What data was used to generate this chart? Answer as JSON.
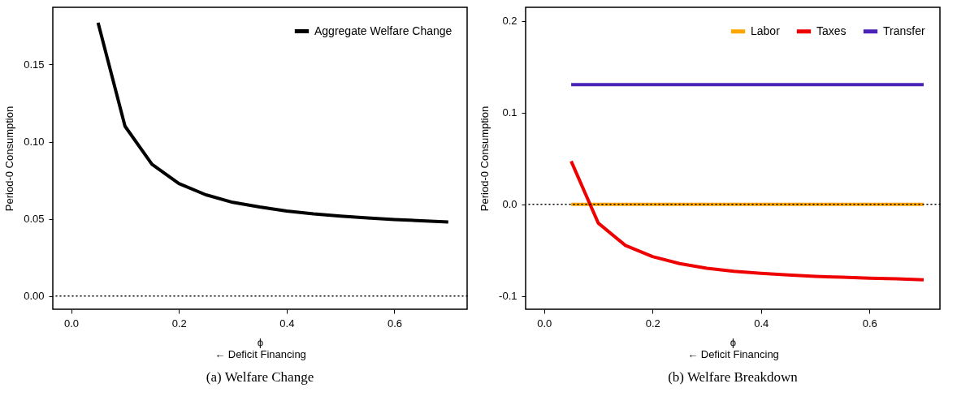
{
  "chart_data": [
    {
      "type": "line",
      "title": "(a) Welfare Change",
      "xlabel": "ϕ\n← Deficit Financing",
      "ylabel": "Period-0 Consumption",
      "x": [
        0.05,
        0.1,
        0.15,
        0.2,
        0.25,
        0.3,
        0.35,
        0.4,
        0.45,
        0.5,
        0.55,
        0.6,
        0.65,
        0.7
      ],
      "series": [
        {
          "name": "Aggregate Welfare Change",
          "color": "#000000",
          "values": [
            0.177,
            0.11,
            0.0854,
            0.0729,
            0.0656,
            0.0607,
            0.0577,
            0.0551,
            0.0532,
            0.0518,
            0.0506,
            0.0496,
            0.0488,
            0.048
          ]
        }
      ],
      "xlim": [
        -0.034,
        0.735
      ],
      "ylim": [
        -0.0085,
        0.187
      ],
      "xticks": [
        {
          "value": 0,
          "label": "0.0"
        },
        {
          "value": 0.2,
          "label": "0.2"
        },
        {
          "value": 0.4,
          "label": "0.4"
        },
        {
          "value": 0.6,
          "label": "0.6"
        }
      ],
      "yticks": [
        {
          "value": 0,
          "label": "0.00"
        },
        {
          "value": 0.05,
          "label": "0.05"
        },
        {
          "value": 0.1,
          "label": "0.10"
        },
        {
          "value": 0.15,
          "label": "0.15"
        }
      ],
      "ref_lines": [
        {
          "axis": "y",
          "value": 0,
          "color": "#000000",
          "line_style": "dotted"
        }
      ],
      "legend": "top right",
      "line_style": "solid"
    },
    {
      "type": "line",
      "title": "(b) Welfare Breakdown",
      "xlabel": "ϕ\n← Deficit Financing",
      "ylabel": "Period-0 Consumption",
      "x": [
        0.05,
        0.1,
        0.15,
        0.2,
        0.25,
        0.3,
        0.35,
        0.4,
        0.45,
        0.5,
        0.55,
        0.6,
        0.65,
        0.7
      ],
      "series": [
        {
          "name": "Labor",
          "color": "#ffa500",
          "values": [
            0,
            0,
            0,
            0,
            0,
            0,
            0,
            0,
            0,
            0,
            0,
            0,
            0,
            0
          ]
        },
        {
          "name": "Taxes",
          "color": "#ee0000",
          "values": [
            0.047,
            -0.0206,
            -0.0449,
            -0.0571,
            -0.0648,
            -0.0698,
            -0.0731,
            -0.0754,
            -0.0771,
            -0.0787,
            -0.0797,
            -0.0807,
            -0.0814,
            -0.0824
          ]
        },
        {
          "name": "Transfer",
          "color": "#4a22b8",
          "values": [
            0.1306,
            0.1306,
            0.1306,
            0.1306,
            0.1306,
            0.1306,
            0.1306,
            0.1306,
            0.1306,
            0.1306,
            0.1306,
            0.1306,
            0.1306,
            0.1306
          ]
        }
      ],
      "xlim": [
        -0.034,
        0.73
      ],
      "ylim": [
        -0.1146,
        0.215
      ],
      "xticks": [
        {
          "value": 0,
          "label": "0.0"
        },
        {
          "value": 0.2,
          "label": "0.2"
        },
        {
          "value": 0.4,
          "label": "0.4"
        },
        {
          "value": 0.6,
          "label": "0.6"
        }
      ],
      "yticks": [
        {
          "value": -0.1,
          "label": "-0.1"
        },
        {
          "value": 0,
          "label": "0.0"
        },
        {
          "value": 0.1,
          "label": "0.1"
        },
        {
          "value": 0.2,
          "label": "0.2"
        }
      ],
      "ref_lines": [
        {
          "axis": "y",
          "value": 0,
          "color": "#000000",
          "line_style": "dotted"
        }
      ],
      "legend": "top right",
      "line_style": "solid"
    }
  ]
}
